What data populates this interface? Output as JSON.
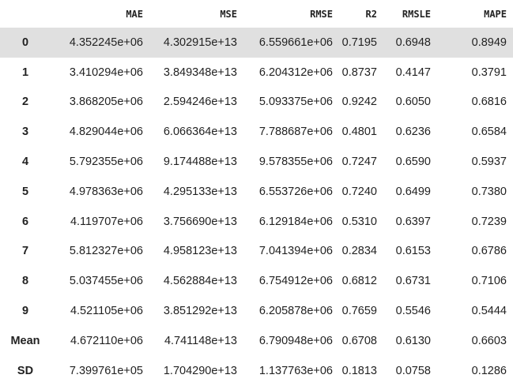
{
  "table": {
    "columns": [
      "",
      "MAE",
      "MSE",
      "RMSE",
      "R2",
      "RMSLE",
      "MAPE"
    ],
    "rows": [
      {
        "index": "0",
        "values": [
          "4.352245e+06",
          "4.302915e+13",
          "6.559661e+06",
          "0.7195",
          "0.6948",
          "0.8949"
        ]
      },
      {
        "index": "1",
        "values": [
          "3.410294e+06",
          "3.849348e+13",
          "6.204312e+06",
          "0.8737",
          "0.4147",
          "0.3791"
        ]
      },
      {
        "index": "2",
        "values": [
          "3.868205e+06",
          "2.594246e+13",
          "5.093375e+06",
          "0.9242",
          "0.6050",
          "0.6816"
        ]
      },
      {
        "index": "3",
        "values": [
          "4.829044e+06",
          "6.066364e+13",
          "7.788687e+06",
          "0.4801",
          "0.6236",
          "0.6584"
        ]
      },
      {
        "index": "4",
        "values": [
          "5.792355e+06",
          "9.174488e+13",
          "9.578355e+06",
          "0.7247",
          "0.6590",
          "0.5937"
        ]
      },
      {
        "index": "5",
        "values": [
          "4.978363e+06",
          "4.295133e+13",
          "6.553726e+06",
          "0.7240",
          "0.6499",
          "0.7380"
        ]
      },
      {
        "index": "6",
        "values": [
          "4.119707e+06",
          "3.756690e+13",
          "6.129184e+06",
          "0.5310",
          "0.6397",
          "0.7239"
        ]
      },
      {
        "index": "7",
        "values": [
          "5.812327e+06",
          "4.958123e+13",
          "7.041394e+06",
          "0.2834",
          "0.6153",
          "0.6786"
        ]
      },
      {
        "index": "8",
        "values": [
          "5.037455e+06",
          "4.562884e+13",
          "6.754912e+06",
          "0.6812",
          "0.6731",
          "0.7106"
        ]
      },
      {
        "index": "9",
        "values": [
          "4.521105e+06",
          "3.851292e+13",
          "6.205878e+06",
          "0.7659",
          "0.5546",
          "0.5444"
        ]
      },
      {
        "index": "Mean",
        "values": [
          "4.672110e+06",
          "4.741148e+13",
          "6.790948e+06",
          "0.6708",
          "0.6130",
          "0.6603"
        ]
      },
      {
        "index": "SD",
        "values": [
          "7.399761e+05",
          "1.704290e+13",
          "1.137763e+06",
          "0.1813",
          "0.0758",
          "0.1286"
        ]
      }
    ],
    "highlight_color": "#e0e0e0",
    "text_color": "#222222"
  }
}
